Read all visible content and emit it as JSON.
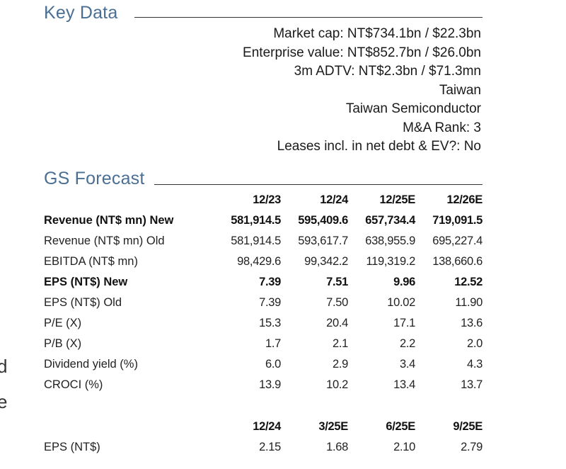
{
  "key_data": {
    "title": "Key Data",
    "lines": [
      "Market cap: NT$734.1bn / $22.3bn",
      "Enterprise value: NT$852.7bn / $26.0bn",
      "3m ADTV: NT$2.3bn / $71.3mn",
      "Taiwan",
      "Taiwan Semiconductor",
      "M&A Rank: 3",
      "Leases incl. in net debt & EV?: No"
    ]
  },
  "forecast": {
    "title": "GS Forecast",
    "annual_headers": [
      "12/23",
      "12/24",
      "12/25E",
      "12/26E"
    ],
    "rows": [
      {
        "label": "Revenue (NT$ mn) New",
        "values": [
          "581,914.5",
          "595,409.6",
          "657,734.4",
          "719,091.5"
        ],
        "bold": true
      },
      {
        "label": "Revenue (NT$ mn) Old",
        "values": [
          "581,914.5",
          "593,617.7",
          "638,955.9",
          "695,227.4"
        ],
        "bold": false
      },
      {
        "label": "EBITDA (NT$ mn)",
        "values": [
          "98,429.6",
          "99,342.2",
          "119,319.2",
          "138,660.6"
        ],
        "bold": false
      },
      {
        "label": "EPS (NT$) New",
        "values": [
          "7.39",
          "7.51",
          "9.96",
          "12.52"
        ],
        "bold": true
      },
      {
        "label": "EPS (NT$) Old",
        "values": [
          "7.39",
          "7.50",
          "10.02",
          "11.90"
        ],
        "bold": false
      },
      {
        "label": "P/E (X)",
        "values": [
          "15.3",
          "20.4",
          "17.1",
          "13.6"
        ],
        "bold": false
      },
      {
        "label": "P/B (X)",
        "values": [
          "1.7",
          "2.1",
          "2.2",
          "2.0"
        ],
        "bold": false
      },
      {
        "label": "Dividend yield (%)",
        "values": [
          "6.0",
          "2.9",
          "3.4",
          "4.3"
        ],
        "bold": false
      },
      {
        "label": "CROCI (%)",
        "values": [
          "13.9",
          "10.2",
          "13.4",
          "13.7"
        ],
        "bold": false
      }
    ],
    "quarterly_headers": [
      "12/24",
      "3/25E",
      "6/25E",
      "9/25E"
    ],
    "quarterly_rows": [
      {
        "label": "EPS (NT$)",
        "values": [
          "2.15",
          "1.68",
          "2.10",
          "2.79"
        ]
      }
    ]
  },
  "edge_text": [
    "d",
    "e"
  ]
}
